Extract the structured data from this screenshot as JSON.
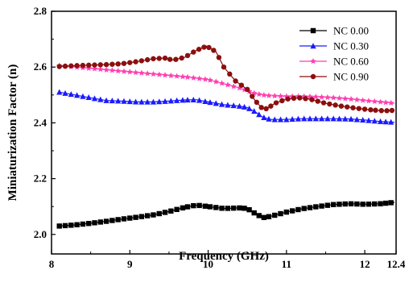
{
  "chart_data": {
    "type": "line",
    "xlabel": "Frequency (GHz)",
    "ylabel": "Miniaturization Factor (n)",
    "xlim": [
      8,
      12.4
    ],
    "ylim": [
      1.93,
      2.8
    ],
    "xticks": [
      8,
      9,
      10,
      11,
      12,
      12.4
    ],
    "yticks": [
      2.0,
      2.2,
      2.4,
      2.6,
      2.8
    ],
    "xtick_labels": [
      "8",
      "9",
      "10",
      "11",
      "12",
      "12.4"
    ],
    "ytick_labels": [
      "2.0",
      "2.2",
      "2.4",
      "2.6",
      "2.8"
    ],
    "legend_position": "top-right",
    "grid": false,
    "series": [
      {
        "name": "NC 0.00",
        "color": "#000000",
        "marker": "square",
        "x": [
          8.1,
          8.3,
          8.5,
          8.7,
          8.9,
          9.1,
          9.3,
          9.5,
          9.7,
          9.85,
          10.0,
          10.2,
          10.4,
          10.5,
          10.6,
          10.7,
          10.8,
          11.0,
          11.2,
          11.4,
          11.6,
          11.8,
          12.0,
          12.2,
          12.38
        ],
        "values": [
          2.03,
          2.034,
          2.04,
          2.047,
          2.055,
          2.062,
          2.07,
          2.082,
          2.097,
          2.105,
          2.1,
          2.093,
          2.095,
          2.093,
          2.075,
          2.06,
          2.065,
          2.08,
          2.092,
          2.1,
          2.107,
          2.11,
          2.108,
          2.11,
          2.115
        ]
      },
      {
        "name": "NC 0.30",
        "color": "#1a1aff",
        "marker": "triangle",
        "x": [
          8.1,
          8.3,
          8.5,
          8.7,
          8.9,
          9.1,
          9.3,
          9.5,
          9.7,
          9.85,
          10.0,
          10.2,
          10.4,
          10.5,
          10.6,
          10.7,
          10.8,
          11.0,
          11.2,
          11.4,
          11.6,
          11.8,
          12.0,
          12.2,
          12.38
        ],
        "values": [
          2.51,
          2.5,
          2.49,
          2.48,
          2.478,
          2.475,
          2.475,
          2.478,
          2.482,
          2.483,
          2.475,
          2.465,
          2.46,
          2.455,
          2.44,
          2.42,
          2.412,
          2.412,
          2.415,
          2.415,
          2.415,
          2.414,
          2.41,
          2.405,
          2.402
        ]
      },
      {
        "name": "NC 0.60",
        "color": "#ff3fb0",
        "marker": "star",
        "x": [
          8.1,
          8.3,
          8.5,
          8.7,
          8.9,
          9.1,
          9.3,
          9.5,
          9.7,
          9.85,
          10.0,
          10.2,
          10.4,
          10.5,
          10.6,
          10.7,
          10.8,
          11.0,
          11.2,
          11.4,
          11.6,
          11.8,
          12.0,
          12.2,
          12.38
        ],
        "values": [
          2.605,
          2.6,
          2.595,
          2.59,
          2.585,
          2.58,
          2.575,
          2.57,
          2.565,
          2.56,
          2.555,
          2.54,
          2.525,
          2.515,
          2.505,
          2.5,
          2.497,
          2.495,
          2.495,
          2.493,
          2.49,
          2.486,
          2.48,
          2.475,
          2.47
        ]
      },
      {
        "name": "NC 0.90",
        "color": "#8b0f0f",
        "marker": "circle",
        "x": [
          8.1,
          8.3,
          8.5,
          8.7,
          8.9,
          9.1,
          9.3,
          9.45,
          9.55,
          9.7,
          9.85,
          9.98,
          10.1,
          10.2,
          10.35,
          10.5,
          10.6,
          10.68,
          10.75,
          10.85,
          11.0,
          11.15,
          11.3,
          11.5,
          11.7,
          11.9,
          12.1,
          12.25,
          12.38
        ],
        "values": [
          2.602,
          2.605,
          2.607,
          2.609,
          2.612,
          2.62,
          2.63,
          2.632,
          2.625,
          2.635,
          2.66,
          2.675,
          2.655,
          2.6,
          2.55,
          2.52,
          2.48,
          2.455,
          2.45,
          2.47,
          2.485,
          2.49,
          2.485,
          2.47,
          2.46,
          2.452,
          2.446,
          2.443,
          2.445
        ]
      }
    ]
  }
}
